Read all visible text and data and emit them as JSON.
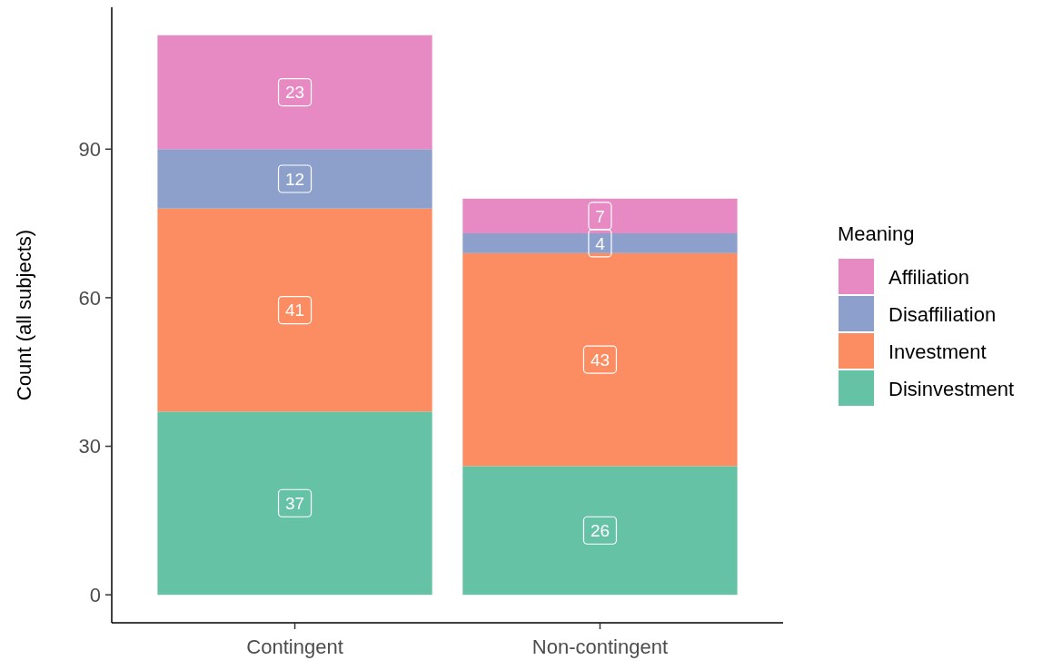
{
  "chart_data": {
    "type": "bar",
    "stacked": true,
    "ylabel": "Count (all subjects)",
    "legend_title": "Meaning",
    "legend": "right",
    "categories": [
      "Contingent",
      "Non-contingent"
    ],
    "ylim": [
      -5.65,
      118.65
    ],
    "yticks": [
      0,
      30,
      60,
      90
    ],
    "grid": false,
    "data_labels": true,
    "series": [
      {
        "name": "Disinvestment",
        "color": "#66c2a5",
        "values": [
          37,
          26
        ]
      },
      {
        "name": "Investment",
        "color": "#fc8d62",
        "values": [
          41,
          43
        ]
      },
      {
        "name": "Disaffiliation",
        "color": "#8da0cb",
        "values": [
          12,
          4
        ]
      },
      {
        "name": "Affiliation",
        "color": "#e78ac3",
        "values": [
          23,
          7
        ]
      }
    ]
  }
}
